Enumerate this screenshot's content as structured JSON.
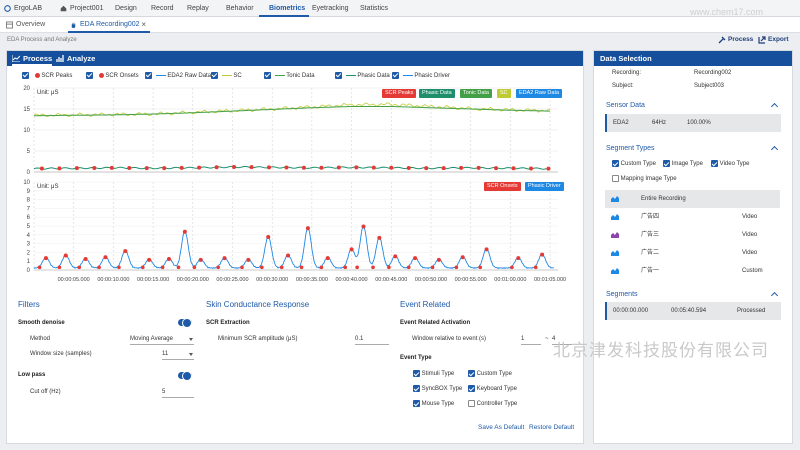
{
  "topbar": {
    "items": [
      "ErgoLAB",
      "Project001",
      "Design",
      "Record",
      "Replay",
      "Behavior",
      "Biometrics",
      "Eyetracking",
      "Statistics"
    ],
    "active": "Biometrics"
  },
  "tabs": {
    "overview": "Overview",
    "recording": "EDA Recording002",
    "close": "×"
  },
  "breadcrumb": "EDA Process and Analyze",
  "toolbar": {
    "process": "Process",
    "export": "Export"
  },
  "left_tabs": {
    "process": "Process",
    "analyze": "Analyze"
  },
  "legend": [
    {
      "label": "SCR Peaks",
      "color": "#e53935",
      "kind": "dot"
    },
    {
      "label": "SCR Onsets",
      "color": "#e53935",
      "kind": "dot"
    },
    {
      "label": "EDA2 Raw Data",
      "color": "#1e88e5",
      "kind": "line"
    },
    {
      "label": "SC",
      "color": "#c0ca33",
      "kind": "line"
    },
    {
      "label": "Tonic Data",
      "color": "#43a047",
      "kind": "line"
    },
    {
      "label": "Phasic Data",
      "color": "#1e8f6a",
      "kind": "line"
    },
    {
      "label": "Phasic Driver",
      "color": "#1e88e5",
      "kind": "line"
    }
  ],
  "chart_data": [
    {
      "type": "line",
      "title": "",
      "ylabel": "Unit: μS",
      "ylim": [
        0,
        20
      ],
      "yticks": [
        0,
        5,
        10,
        15,
        20
      ],
      "series_badges": [
        {
          "name": "SCR Peaks",
          "color": "#e53935"
        },
        {
          "name": "Phasic Data",
          "color": "#1e8f6a"
        },
        {
          "name": "Tonic Data",
          "color": "#43a047"
        },
        {
          "name": "SC",
          "color": "#c0ca33"
        },
        {
          "name": "EDA2 Raw Data",
          "color": "#1e88e5"
        }
      ],
      "x": [
        0,
        5,
        10,
        15,
        20,
        25,
        30,
        35,
        40,
        45,
        50,
        55,
        60,
        65
      ],
      "series": [
        {
          "name": "SC",
          "values": [
            13.5,
            13.6,
            13.7,
            13.8,
            14.2,
            14.6,
            15.0,
            15.5,
            16.0,
            16.1,
            15.6,
            15.1,
            14.8,
            14.6
          ]
        },
        {
          "name": "Tonic Data",
          "values": [
            13.4,
            13.5,
            13.6,
            13.8,
            14.1,
            14.5,
            14.9,
            15.3,
            15.6,
            15.6,
            15.3,
            15.0,
            14.7,
            14.5
          ]
        },
        {
          "name": "Phasic Data",
          "values": [
            0.8,
            0.9,
            1.0,
            0.9,
            1.0,
            1.2,
            1.1,
            1.0,
            1.1,
            1.0,
            0.9,
            1.0,
            0.9,
            0.8
          ]
        }
      ]
    },
    {
      "type": "line",
      "title": "",
      "ylabel": "Unit: μS",
      "ylim": [
        0,
        10
      ],
      "yticks": [
        0,
        1,
        2,
        3,
        4,
        5,
        6,
        7,
        8,
        9,
        10
      ],
      "series_badges": [
        {
          "name": "SCR Onsets",
          "color": "#e53935"
        },
        {
          "name": "Phasic Driver",
          "color": "#1e88e5"
        }
      ],
      "xticks": [
        "00:00:05.000",
        "00:00:10.000",
        "00:00:15.000",
        "00:00:20.000",
        "00:00:25.000",
        "00:00:30.000",
        "00:00:35.000",
        "00:00:40.000",
        "00:00:45.000",
        "00:00:50.000",
        "00:00:55.000",
        "00:01:00.000",
        "00:01:05.000"
      ],
      "peaks": [
        [
          1.5,
          1.2
        ],
        [
          4,
          1.5
        ],
        [
          6.5,
          1.1
        ],
        [
          9,
          1.3
        ],
        [
          11.5,
          2.0
        ],
        [
          14.5,
          1.0
        ],
        [
          17,
          1.1
        ],
        [
          19,
          4.2
        ],
        [
          21,
          1.0
        ],
        [
          24,
          1.2
        ],
        [
          27,
          1.0
        ],
        [
          29.5,
          3.6
        ],
        [
          32,
          1.5
        ],
        [
          34.5,
          4.6
        ],
        [
          37,
          1.2
        ],
        [
          40,
          2.2
        ],
        [
          41.5,
          4.8
        ],
        [
          43.5,
          3.5
        ],
        [
          45.5,
          1.4
        ],
        [
          48,
          1.2
        ],
        [
          51,
          1.0
        ],
        [
          54,
          1.3
        ],
        [
          57,
          2.2
        ],
        [
          61,
          1.2
        ],
        [
          64,
          1.6
        ]
      ]
    }
  ],
  "filters": {
    "title": "Filters",
    "smooth": "Smooth denoise",
    "method_label": "Method",
    "method_value": "Moving Average",
    "window_label": "Window size (samples)",
    "window_value": "11",
    "lowpass": "Low pass",
    "cutoff_label": "Cut off (Hz)",
    "cutoff_value": "5"
  },
  "scr": {
    "title": "Skin Conductance Response",
    "extraction": "SCR Extraction",
    "min_label": "Minimum SCR amplitude (μS)",
    "min_value": "0.1"
  },
  "event": {
    "title": "Event Related",
    "activation": "Event Related Activation",
    "window_label": "Window relative to event (s)",
    "from": "1",
    "dash": "~",
    "to": "4",
    "type_title": "Event Type",
    "types": [
      {
        "label": "Stimuli Type",
        "checked": true
      },
      {
        "label": "Custom Type",
        "checked": true
      },
      {
        "label": "SyncBOX Type",
        "checked": true
      },
      {
        "label": "Keyboard Type",
        "checked": true
      },
      {
        "label": "Mouse Type",
        "checked": true
      },
      {
        "label": "Controller Type",
        "checked": false
      }
    ],
    "save": "Save As Default",
    "restore": "Restore Default"
  },
  "data_selection": {
    "title": "Data Selection",
    "recording_label": "Recording:",
    "recording_value": "Recording002",
    "subject_label": "Subject:",
    "subject_value": "Subject003",
    "sensor_title": "Sensor Data",
    "sensor": {
      "name": "EDA2",
      "rate": "64Hz",
      "pct": "100.00%"
    },
    "segment_types_title": "Segment Types",
    "segment_types": [
      {
        "label": "Custom Type",
        "checked": true
      },
      {
        "label": "Image Type",
        "checked": true
      },
      {
        "label": "Video Type",
        "checked": true
      },
      {
        "label": "Mapping Image Type",
        "checked": false
      }
    ],
    "segments_list": [
      {
        "name": "Entire Recording",
        "type": "",
        "color": "#1e88e5"
      },
      {
        "name": "广告四",
        "type": "Video",
        "color": "#1e88e5"
      },
      {
        "name": "广告三",
        "type": "Video",
        "color": "#8e44ad"
      },
      {
        "name": "广告二",
        "type": "Video",
        "color": "#1e88e5"
      },
      {
        "name": "广告一",
        "type": "Custom",
        "color": "#1e88e5"
      }
    ],
    "segments_title": "Segments",
    "segment": {
      "start": "00:00:00.000",
      "end": "00:05:40.594",
      "status": "Processed"
    }
  },
  "watermark": "北京津发科技股份有限公司",
  "watermark2": "www.chem17.com"
}
